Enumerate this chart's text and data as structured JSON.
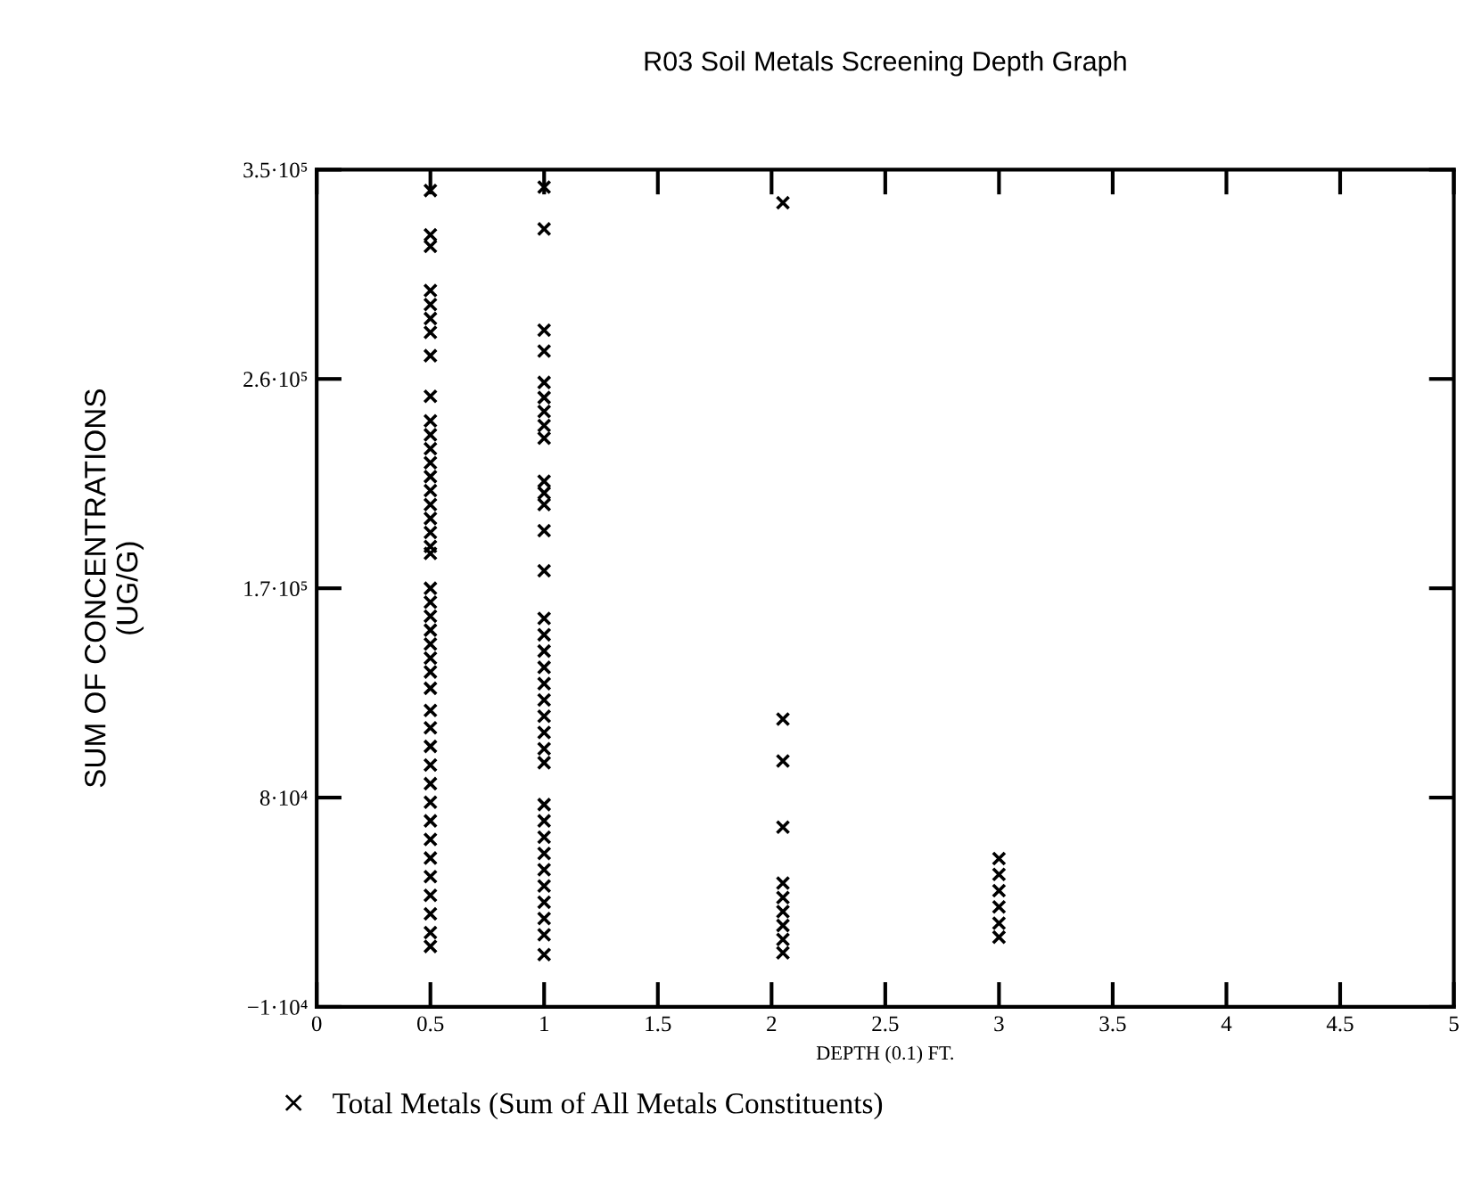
{
  "chart_data": {
    "type": "scatter",
    "title": "R03 Soil Metals Screening Depth Graph",
    "xlabel": "DEPTH (0.1) FT.",
    "ylabel": "SUM OF CONCENTRATIONS\n(UG/G)",
    "series": [
      {
        "name": "Total Metals (Sum of All Metals Constituents)",
        "color": "#000000",
        "x": [
          0.5,
          0.5,
          0.5,
          0.5,
          0.5,
          0.5,
          0.5,
          0.5,
          0.5,
          0.5,
          0.5,
          0.5,
          0.5,
          0.5,
          0.5,
          0.5,
          0.5,
          0.5,
          0.5,
          0.5,
          0.5,
          0.5,
          0.5,
          0.5,
          0.5,
          0.5,
          0.5,
          0.5,
          0.5,
          0.5,
          0.5,
          0.5,
          0.5,
          0.5,
          0.5,
          0.5,
          0.5,
          0.5,
          0.5,
          0.5,
          0.5,
          0.5,
          1,
          1,
          1,
          1,
          1,
          1,
          1,
          1,
          1,
          1,
          1,
          1,
          1,
          1,
          1,
          1,
          1,
          1,
          1,
          1,
          1,
          1,
          1,
          1,
          1,
          1,
          1,
          1,
          1,
          1,
          1,
          1,
          1,
          1,
          2.05,
          2.05,
          2.05,
          2.05,
          2.05,
          2.05,
          2.05,
          2.05,
          2.05,
          2.05,
          3,
          3,
          3,
          3,
          3,
          3
        ],
        "values": [
          341000,
          322000,
          317000,
          298000,
          292000,
          286000,
          280000,
          270000,
          252500,
          242000,
          236000,
          230000,
          224000,
          218000,
          212000,
          206000,
          200000,
          194000,
          188000,
          185000,
          170000,
          164000,
          158000,
          152000,
          146000,
          140000,
          134000,
          127000,
          117500,
          110000,
          102000,
          94000,
          86000,
          78000,
          70000,
          62000,
          54000,
          46000,
          38000,
          30000,
          22000,
          16000,
          342500,
          324500,
          281000,
          272000,
          258500,
          252000,
          246000,
          240000,
          234500,
          216000,
          211000,
          206000,
          194750,
          177500,
          157000,
          150000,
          143000,
          136000,
          129000,
          122000,
          115000,
          108000,
          101000,
          95000,
          77000,
          70000,
          63000,
          56000,
          49000,
          42000,
          35000,
          28000,
          21000,
          12500,
          335750,
          113750,
          95750,
          67250,
          43250,
          37000,
          31000,
          25000,
          19000,
          13250,
          53750,
          47000,
          40000,
          33000,
          26000,
          20000
        ]
      }
    ],
    "marker": "cross",
    "legend": "bottom",
    "grid": false,
    "xlim": [
      0,
      5
    ],
    "xticks": [
      0,
      0.5,
      1,
      1.5,
      2,
      2.5,
      3,
      3.5,
      4,
      4.5,
      5
    ],
    "ylim": [
      -10000,
      350000
    ],
    "yticks": [
      {
        "value": -10000,
        "label": "−1·10⁴"
      },
      {
        "value": 80000,
        "label": "8·10⁴"
      },
      {
        "value": 170000,
        "label": "1.7·10⁵"
      },
      {
        "value": 260000,
        "label": "2.6·10⁵"
      },
      {
        "value": 350000,
        "label": "3.5·10⁵"
      }
    ]
  }
}
